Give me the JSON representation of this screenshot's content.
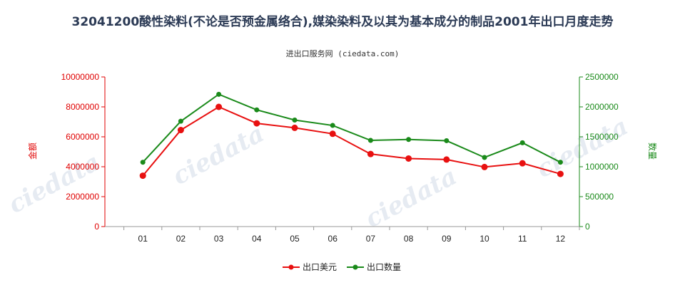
{
  "chart_data": {
    "type": "line",
    "title": "32041200酸性染料(不论是否预金属络合),媒染染料及以其为基本成分的制品2001年出口月度走势",
    "subtitle": "进出口服务网 (ciedata.com)",
    "categories": [
      "01",
      "02",
      "03",
      "04",
      "05",
      "06",
      "07",
      "08",
      "09",
      "10",
      "11",
      "12"
    ],
    "y_left": {
      "label": "金额",
      "ylim": [
        0,
        10000000
      ],
      "ticks": [
        0,
        2000000,
        4000000,
        6000000,
        8000000,
        10000000
      ],
      "tick_labels": [
        "0",
        "2000000",
        "4000000",
        "6000000",
        "8000000",
        "10000000"
      ]
    },
    "y_right": {
      "label": "数量",
      "ylim": [
        0,
        2500000
      ],
      "ticks": [
        0,
        500000,
        1000000,
        1500000,
        2000000,
        2500000
      ],
      "tick_labels": [
        "0",
        "500000",
        "1000000",
        "1500000",
        "2000000",
        "2500000"
      ]
    },
    "series": [
      {
        "name": "出口美元",
        "axis": "left",
        "color": "#e81010",
        "values": [
          3400000,
          6450000,
          8000000,
          6900000,
          6600000,
          6200000,
          4850000,
          4550000,
          4480000,
          3980000,
          4230000,
          3520000
        ]
      },
      {
        "name": "出口数量",
        "axis": "right",
        "color": "#1a8a1a",
        "values": [
          1075000,
          1760000,
          2210000,
          1950000,
          1780000,
          1690000,
          1440000,
          1455000,
          1435000,
          1155000,
          1400000,
          1075000
        ]
      }
    ],
    "grid": false,
    "legend": "bottom-center"
  }
}
